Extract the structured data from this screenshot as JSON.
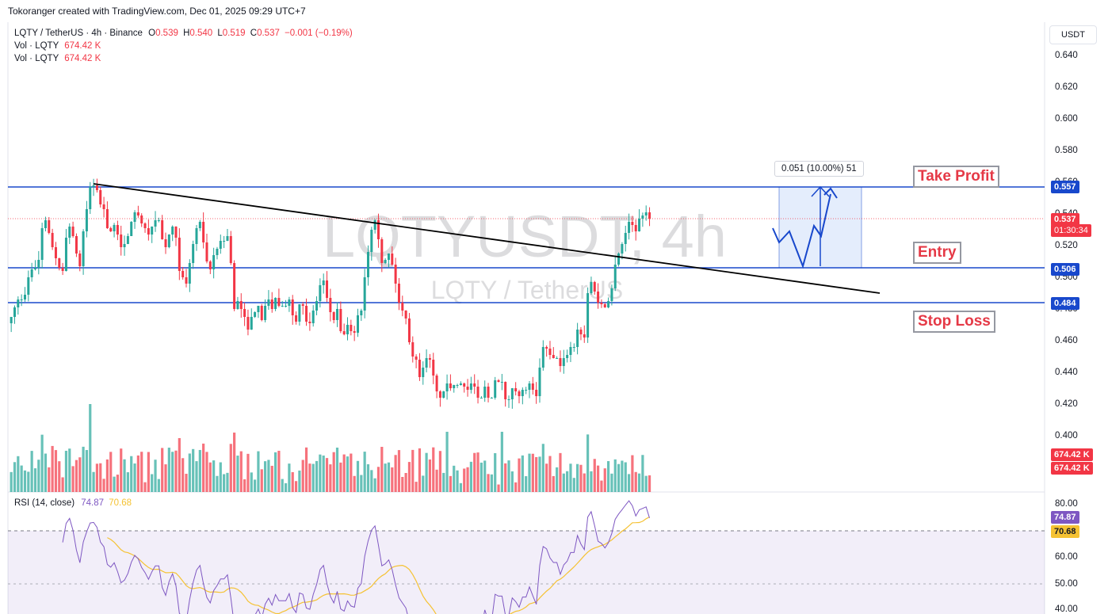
{
  "header": {
    "credit": "Tokoranger created with TradingView.com, Dec 01, 2025 09:29 UTC+7"
  },
  "legend": {
    "symbol": "LQTY / TetherUS · 4h · Binance",
    "o_key": "O",
    "o_val": "0.539",
    "h_key": "H",
    "h_val": "0.540",
    "l_key": "L",
    "l_val": "0.519",
    "c_key": "C",
    "c_val": "0.537",
    "change": "−0.001 (−0.19%)",
    "vol1_key": "Vol · LQTY",
    "vol1_val": "674.42 K",
    "vol2_key": "Vol · LQTY",
    "vol2_val": "674.42 K"
  },
  "watermark": {
    "main": "LQTYUSDT, 4h",
    "sub": "LQTY / TetherUS"
  },
  "price_axis": {
    "currency_button": "USDT",
    "labels": [
      "0.640",
      "0.620",
      "0.600",
      "0.580",
      "0.560",
      "0.540",
      "0.520",
      "0.500",
      "0.480",
      "0.460",
      "0.440",
      "0.420",
      "0.400"
    ],
    "tags": {
      "take_profit": "0.557",
      "current_price": "0.537",
      "countdown": "01:30:34",
      "entry": "0.506",
      "stop_loss": "0.484",
      "vol1": "674.42 K",
      "vol2": "674.42 K"
    }
  },
  "rsi": {
    "label": "RSI (14, close)",
    "value1": "74.87",
    "value2": "70.68",
    "axis_labels": [
      "80.00",
      "60.00",
      "50.00",
      "40.00"
    ]
  },
  "annotations": {
    "take_profit": "Take Profit",
    "entry": "Entry",
    "stop_loss": "Stop Loss",
    "measure": "0.051 (10.00%) 51"
  },
  "colors": {
    "bull": "#26a69a",
    "bear": "#f23645",
    "level_line": "#1848cc",
    "trendline": "#000000",
    "rsi_line": "#7e57c2",
    "rsi_ma": "#f5c233",
    "target_zone": "#dbe7fb",
    "annotation_text": "#e53946"
  },
  "chart_data": {
    "type": "candlestick",
    "symbol": "LQTY / TetherUS",
    "timeframe": "4h",
    "exchange": "Binance",
    "ylim": [
      0.395,
      0.655
    ],
    "levels": {
      "take_profit": 0.557,
      "entry": 0.506,
      "stop_loss": 0.484
    },
    "current": {
      "open": 0.539,
      "high": 0.54,
      "low": 0.519,
      "close": 0.537,
      "change": -0.001,
      "change_pct": -0.19
    },
    "trendline": [
      [
        0,
        0.559
      ],
      [
        130,
        0.496
      ]
    ],
    "closes": [
      0.475,
      0.481,
      0.486,
      0.486,
      0.489,
      0.5,
      0.505,
      0.506,
      0.511,
      0.531,
      0.536,
      0.528,
      0.519,
      0.512,
      0.506,
      0.504,
      0.525,
      0.532,
      0.526,
      0.515,
      0.507,
      0.529,
      0.543,
      0.557,
      0.558,
      0.555,
      0.546,
      0.543,
      0.531,
      0.529,
      0.533,
      0.527,
      0.519,
      0.521,
      0.526,
      0.535,
      0.541,
      0.539,
      0.534,
      0.531,
      0.527,
      0.532,
      0.536,
      0.536,
      0.524,
      0.519,
      0.527,
      0.532,
      0.525,
      0.504,
      0.5,
      0.496,
      0.509,
      0.521,
      0.531,
      0.535,
      0.522,
      0.51,
      0.505,
      0.514,
      0.518,
      0.523,
      0.523,
      0.526,
      0.509,
      0.48,
      0.485,
      0.48,
      0.475,
      0.467,
      0.475,
      0.478,
      0.482,
      0.473,
      0.482,
      0.486,
      0.48,
      0.487,
      0.482,
      0.482,
      0.482,
      0.486,
      0.476,
      0.472,
      0.483,
      0.482,
      0.472,
      0.471,
      0.479,
      0.485,
      0.495,
      0.498,
      0.487,
      0.478,
      0.473,
      0.48,
      0.466,
      0.464,
      0.47,
      0.466,
      0.465,
      0.476,
      0.479,
      0.5,
      0.516,
      0.53,
      0.536,
      0.524,
      0.509,
      0.511,
      0.515,
      0.508,
      0.496,
      0.484,
      0.479,
      0.474,
      0.459,
      0.45,
      0.448,
      0.437,
      0.443,
      0.449,
      0.448,
      0.438,
      0.428,
      0.424,
      0.428,
      0.433,
      0.43,
      0.432,
      0.432,
      0.433,
      0.431,
      0.429,
      0.433,
      0.431,
      0.424,
      0.424,
      0.431,
      0.424,
      0.424,
      0.435,
      0.434,
      0.434,
      0.423,
      0.423,
      0.43,
      0.428,
      0.425,
      0.429,
      0.429,
      0.433,
      0.429,
      0.425,
      0.443,
      0.456,
      0.455,
      0.451,
      0.449,
      0.449,
      0.444,
      0.449,
      0.451,
      0.456,
      0.456,
      0.467,
      0.464,
      0.462,
      0.49,
      0.497,
      0.491,
      0.484,
      0.483,
      0.481,
      0.485,
      0.493,
      0.508,
      0.515,
      0.521,
      0.528,
      0.535,
      0.533,
      0.529,
      0.537,
      0.539,
      0.541,
      0.537
    ],
    "volume_note": "Vol · LQTY 674.42 K",
    "rsi": {
      "period": 14,
      "last": 74.87,
      "ma_last": 70.68,
      "levels": [
        70,
        50,
        30
      ]
    }
  }
}
